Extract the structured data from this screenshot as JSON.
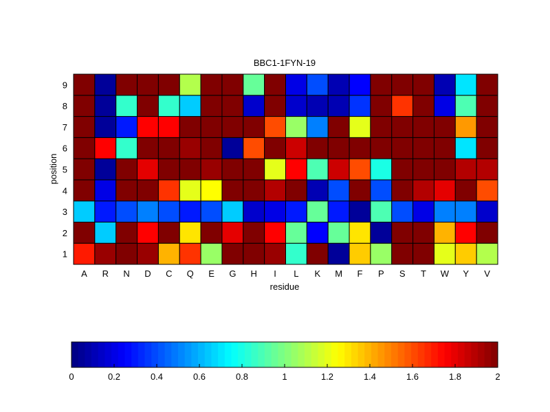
{
  "chart_data": {
    "type": "heatmap",
    "title": "BBC1-1FYN-19",
    "xlabel": "residue",
    "ylabel": "position",
    "x_categories": [
      "A",
      "R",
      "N",
      "D",
      "C",
      "Q",
      "E",
      "G",
      "H",
      "I",
      "L",
      "K",
      "M",
      "F",
      "P",
      "S",
      "T",
      "W",
      "Y",
      "V"
    ],
    "y_categories": [
      "1",
      "2",
      "3",
      "4",
      "5",
      "6",
      "7",
      "8",
      "9"
    ],
    "values": [
      [
        1.7,
        1.95,
        2.0,
        1.95,
        1.4,
        1.65,
        1.05,
        2.0,
        2.0,
        1.95,
        0.85,
        2.0,
        0.05,
        1.35,
        1.05,
        2.0,
        2.0,
        1.2,
        1.35,
        1.1
      ],
      [
        2.0,
        0.65,
        2.0,
        1.75,
        2.0,
        1.3,
        2.0,
        1.8,
        2.0,
        1.75,
        0.95,
        0.25,
        0.95,
        1.3,
        0.05,
        2.0,
        2.0,
        1.4,
        1.75,
        2.0
      ],
      [
        0.65,
        0.3,
        0.4,
        0.5,
        0.4,
        0.3,
        0.4,
        0.65,
        0.15,
        0.2,
        0.3,
        0.95,
        0.3,
        0.05,
        0.9,
        0.4,
        0.2,
        0.5,
        0.5,
        0.15
      ],
      [
        2.0,
        0.2,
        2.0,
        2.0,
        1.65,
        1.2,
        1.25,
        2.0,
        2.0,
        1.9,
        2.0,
        0.1,
        0.4,
        2.0,
        0.4,
        2.0,
        1.9,
        1.8,
        2.0,
        1.6
      ],
      [
        2.0,
        0.05,
        2.0,
        1.8,
        2.0,
        2.0,
        1.95,
        2.0,
        2.0,
        1.2,
        1.75,
        0.9,
        1.85,
        1.6,
        0.8,
        2.0,
        2.0,
        2.0,
        1.9,
        1.9
      ],
      [
        2.0,
        1.75,
        0.85,
        2.0,
        2.0,
        1.95,
        2.0,
        0.05,
        1.6,
        2.0,
        1.85,
        2.0,
        2.0,
        2.0,
        2.0,
        2.0,
        2.0,
        2.0,
        0.7,
        2.0
      ],
      [
        2.0,
        0.05,
        0.3,
        1.75,
        1.75,
        2.0,
        2.0,
        2.0,
        2.0,
        1.6,
        1.05,
        0.5,
        2.0,
        1.2,
        2.0,
        2.0,
        2.0,
        2.0,
        1.45,
        2.0
      ],
      [
        2.0,
        0.05,
        0.85,
        2.0,
        0.85,
        0.65,
        2.0,
        2.0,
        0.15,
        2.0,
        0.15,
        0.1,
        0.1,
        0.35,
        2.0,
        1.65,
        2.0,
        0.2,
        0.9,
        2.0
      ],
      [
        2.0,
        0.05,
        2.0,
        2.0,
        2.0,
        1.1,
        2.0,
        2.0,
        0.95,
        2.0,
        0.2,
        0.4,
        0.1,
        0.25,
        2.0,
        2.0,
        2.0,
        0.1,
        0.7,
        2.0
      ]
    ],
    "colorbar": {
      "min": 0,
      "max": 2,
      "ticks": [
        0,
        0.2,
        0.4,
        0.6,
        0.8,
        1,
        1.2,
        1.4,
        1.6,
        1.8,
        2
      ],
      "tick_labels": [
        "0",
        "0.2",
        "0.4",
        "0.6",
        "0.8",
        "1",
        "1.2",
        "1.4",
        "1.6",
        "1.8",
        "2"
      ],
      "orientation": "horizontal",
      "placement": "bottom"
    },
    "colormap": "jet",
    "grid": false
  }
}
